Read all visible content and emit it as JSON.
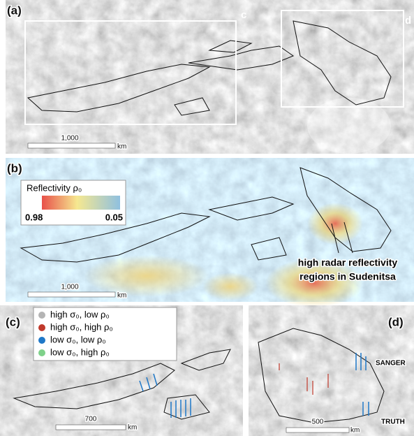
{
  "panels": [
    {
      "label": "(a)",
      "boxes": [
        "c",
        "d"
      ],
      "scale_bar": {
        "value": "1,000",
        "unit": "km"
      }
    },
    {
      "label": "(b)",
      "colorbar": {
        "title": "Reflectivity ρ₀",
        "min_label": "0.98",
        "max_label": "0.05"
      },
      "annotation": [
        "high radar reflectivity",
        "regions in Sudenitsa"
      ],
      "scale_bar": {
        "value": "1,000",
        "unit": "km"
      }
    },
    {
      "label": "(c)",
      "legend": [
        {
          "label": "high σ₀, low ρ₀",
          "color": "#b4b4b4"
        },
        {
          "label": "high σ₀, high ρ₀",
          "color": "#c0392b"
        },
        {
          "label": "low σ₀, low ρ₀",
          "color": "#1f78c8"
        },
        {
          "label": "low σ₀, high ρ₀",
          "color": "#7fd18a"
        }
      ],
      "scale_bar": {
        "value": "700",
        "unit": "km"
      }
    },
    {
      "label": "(d)",
      "features": [
        "SANGER",
        "TRUTH"
      ],
      "scale_bar": {
        "value": "500",
        "unit": "km"
      }
    }
  ]
}
